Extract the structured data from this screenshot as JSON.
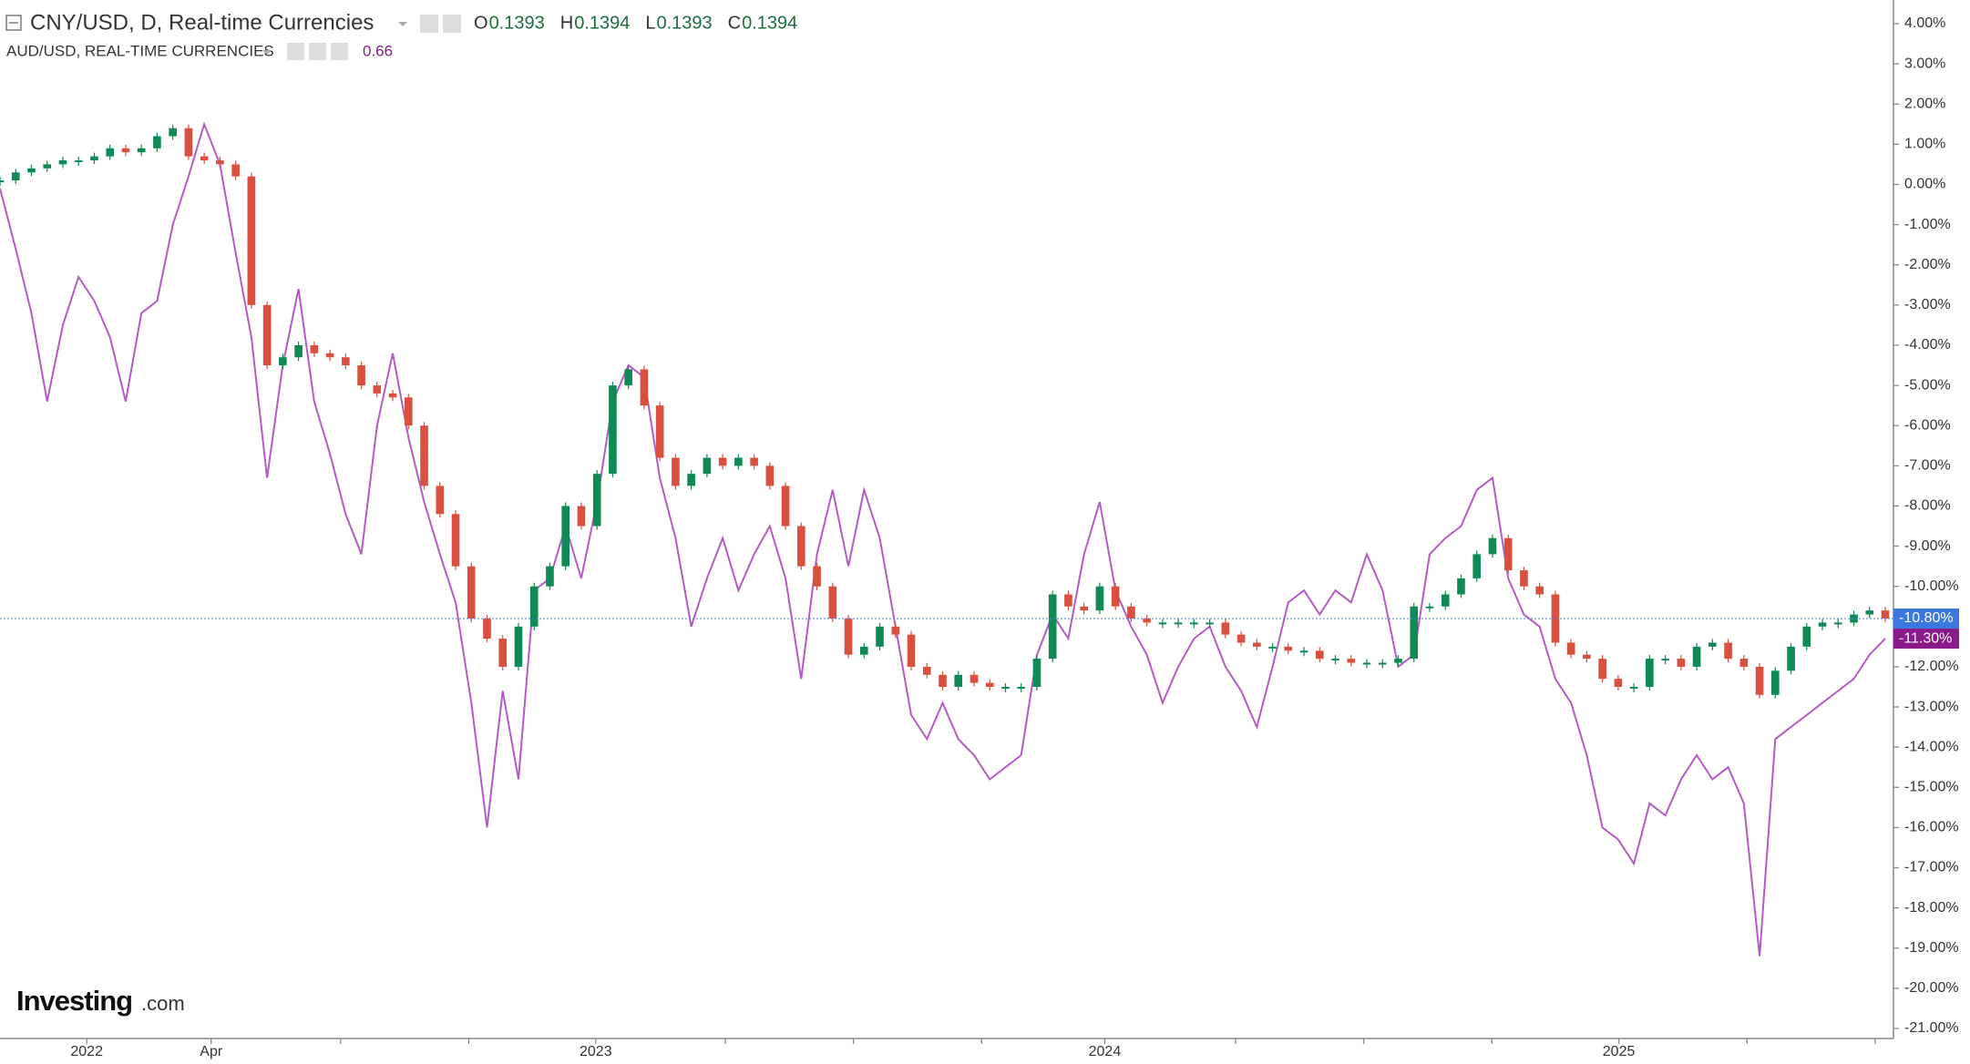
{
  "chart_data": {
    "type": "candle-line",
    "title": "CNY/USD, D, Real-time Currencies",
    "ohlc": [
      {
        "label": "O",
        "value": 0.1393
      },
      {
        "label": "H",
        "value": 0.1394
      },
      {
        "label": "L",
        "value": 0.1393
      },
      {
        "label": "C",
        "value": 0.1394
      }
    ],
    "subtitle": "AUD/USD, REAL-TIME CURRENCIES",
    "subtitle_value": 0.66,
    "logo": {
      "brand": "Investing",
      "suffix": ".com"
    },
    "ylim": [
      -21,
      4
    ],
    "yticks": [
      {
        "value": 4,
        "label": "4.00%"
      },
      {
        "value": 3,
        "label": "3.00%"
      },
      {
        "value": 2,
        "label": "2.00%"
      },
      {
        "value": 1,
        "label": "1.00%"
      },
      {
        "value": 0,
        "label": "0.00%"
      },
      {
        "value": -1,
        "label": "-1.00%"
      },
      {
        "value": -2,
        "label": "-2.00%"
      },
      {
        "value": -3,
        "label": "-3.00%"
      },
      {
        "value": -4,
        "label": "-4.00%"
      },
      {
        "value": -5,
        "label": "-5.00%"
      },
      {
        "value": -6,
        "label": "-6.00%"
      },
      {
        "value": -7,
        "label": "-7.00%"
      },
      {
        "value": -8,
        "label": "-8.00%"
      },
      {
        "value": -9,
        "label": "-9.00%"
      },
      {
        "value": -10,
        "label": "-10.00%"
      },
      {
        "value": -11,
        "label": "-11.00%"
      },
      {
        "value": -12,
        "label": "-12.00%"
      },
      {
        "value": -13,
        "label": "-13.00%"
      },
      {
        "value": -14,
        "label": "-14.00%"
      },
      {
        "value": -15,
        "label": "-15.00%"
      },
      {
        "value": -16,
        "label": "-16.00%"
      },
      {
        "value": -17,
        "label": "-17.00%"
      },
      {
        "value": -18,
        "label": "-18.00%"
      },
      {
        "value": -19,
        "label": "-19.00%"
      },
      {
        "value": -20,
        "label": "-20.00%"
      },
      {
        "value": -21,
        "label": "-21.00%"
      }
    ],
    "xlim": [
      0,
      120
    ],
    "xticks": [
      {
        "value": 5.52,
        "label": "2022"
      },
      {
        "value": 13.44,
        "label": "Apr"
      },
      {
        "value": 37.92,
        "label": "2023"
      },
      {
        "value": 70.32,
        "label": "2024"
      },
      {
        "value": 103.04,
        "label": "2025"
      }
    ],
    "xticks_minor": [
      21.68,
      29.84,
      46.16,
      54.32,
      62.48,
      78.64,
      86.8,
      94.96,
      111.2,
      119.36
    ],
    "series": [
      {
        "name": "CNY/USD",
        "style": "candle",
        "color": "#0f8a55",
        "down_color": "#d9503e",
        "label_color": "#3a78e0",
        "last_label": "-10.80%",
        "values": [
          0.1,
          0.3,
          0.4,
          0.5,
          0.6,
          0.6,
          0.7,
          0.9,
          0.8,
          0.9,
          1.2,
          1.4,
          0.7,
          0.6,
          0.5,
          0.2,
          -3.0,
          -4.5,
          -4.3,
          -4.0,
          -4.2,
          -4.3,
          -4.5,
          -5.0,
          -5.2,
          -5.3,
          -6.0,
          -7.5,
          -8.2,
          -9.5,
          -10.8,
          -11.3,
          -12.0,
          -11.0,
          -10.0,
          -9.5,
          -8.0,
          -8.5,
          -7.2,
          -5.0,
          -4.6,
          -5.5,
          -6.8,
          -7.5,
          -7.2,
          -6.8,
          -7.0,
          -6.8,
          -7.0,
          -7.5,
          -8.5,
          -9.5,
          -10.0,
          -10.8,
          -11.7,
          -11.5,
          -11.0,
          -11.2,
          -12.0,
          -12.2,
          -12.5,
          -12.2,
          -12.4,
          -12.5,
          -12.5,
          -12.5,
          -11.8,
          -10.2,
          -10.5,
          -10.6,
          -10.0,
          -10.5,
          -10.8,
          -10.9,
          -10.9,
          -10.9,
          -10.9,
          -10.9,
          -11.2,
          -11.4,
          -11.5,
          -11.5,
          -11.6,
          -11.6,
          -11.8,
          -11.8,
          -11.9,
          -11.9,
          -11.9,
          -11.8,
          -10.5,
          -10.5,
          -10.2,
          -9.8,
          -9.2,
          -8.8,
          -9.6,
          -10.0,
          -10.2,
          -11.4,
          -11.7,
          -11.8,
          -12.3,
          -12.5,
          -12.5,
          -11.8,
          -11.8,
          -12.0,
          -11.5,
          -11.4,
          -11.8,
          -12.0,
          -12.7,
          -12.1,
          -11.5,
          -11.0,
          -10.9,
          -10.9,
          -10.7,
          -10.6,
          -10.8
        ]
      },
      {
        "name": "AUD/USD",
        "style": "line",
        "color": "#b45cc6",
        "label_color": "#8a1a8a",
        "last_label": "-11.30%",
        "values": [
          -0.1,
          -1.6,
          -3.2,
          -5.4,
          -3.5,
          -2.3,
          -2.9,
          -3.8,
          -5.4,
          -3.2,
          -2.9,
          -1.0,
          0.2,
          1.5,
          0.5,
          -1.7,
          -3.8,
          -7.3,
          -4.5,
          -2.6,
          -5.4,
          -6.7,
          -8.2,
          -9.2,
          -6.0,
          -4.2,
          -6.3,
          -7.9,
          -9.2,
          -10.4,
          -12.9,
          -16.0,
          -12.6,
          -14.8,
          -10.1,
          -9.8,
          -8.5,
          -9.8,
          -7.9,
          -5.4,
          -4.5,
          -4.8,
          -7.3,
          -8.8,
          -11.0,
          -9.8,
          -8.8,
          -10.1,
          -9.2,
          -8.5,
          -9.8,
          -12.3,
          -9.2,
          -7.6,
          -9.5,
          -7.6,
          -8.8,
          -11.0,
          -13.2,
          -13.8,
          -12.9,
          -13.8,
          -14.2,
          -14.8,
          -14.5,
          -14.2,
          -11.7,
          -10.7,
          -11.3,
          -9.2,
          -7.9,
          -10.1,
          -11.0,
          -11.7,
          -12.9,
          -12.0,
          -11.3,
          -11.0,
          -12.0,
          -12.6,
          -13.5,
          -12.0,
          -10.4,
          -10.1,
          -10.7,
          -10.1,
          -10.4,
          -9.2,
          -10.1,
          -12.0,
          -11.7,
          -9.2,
          -8.8,
          -8.5,
          -7.6,
          -7.3,
          -9.8,
          -10.7,
          -11.0,
          -12.3,
          -12.9,
          -14.2,
          -16.0,
          -16.3,
          -16.9,
          -15.4,
          -15.7,
          -14.8,
          -14.2,
          -14.8,
          -14.5,
          -15.4,
          -19.2,
          -13.8,
          -13.5,
          -13.2,
          -12.9,
          -12.6,
          -12.3,
          -11.7,
          -11.3
        ]
      }
    ]
  }
}
